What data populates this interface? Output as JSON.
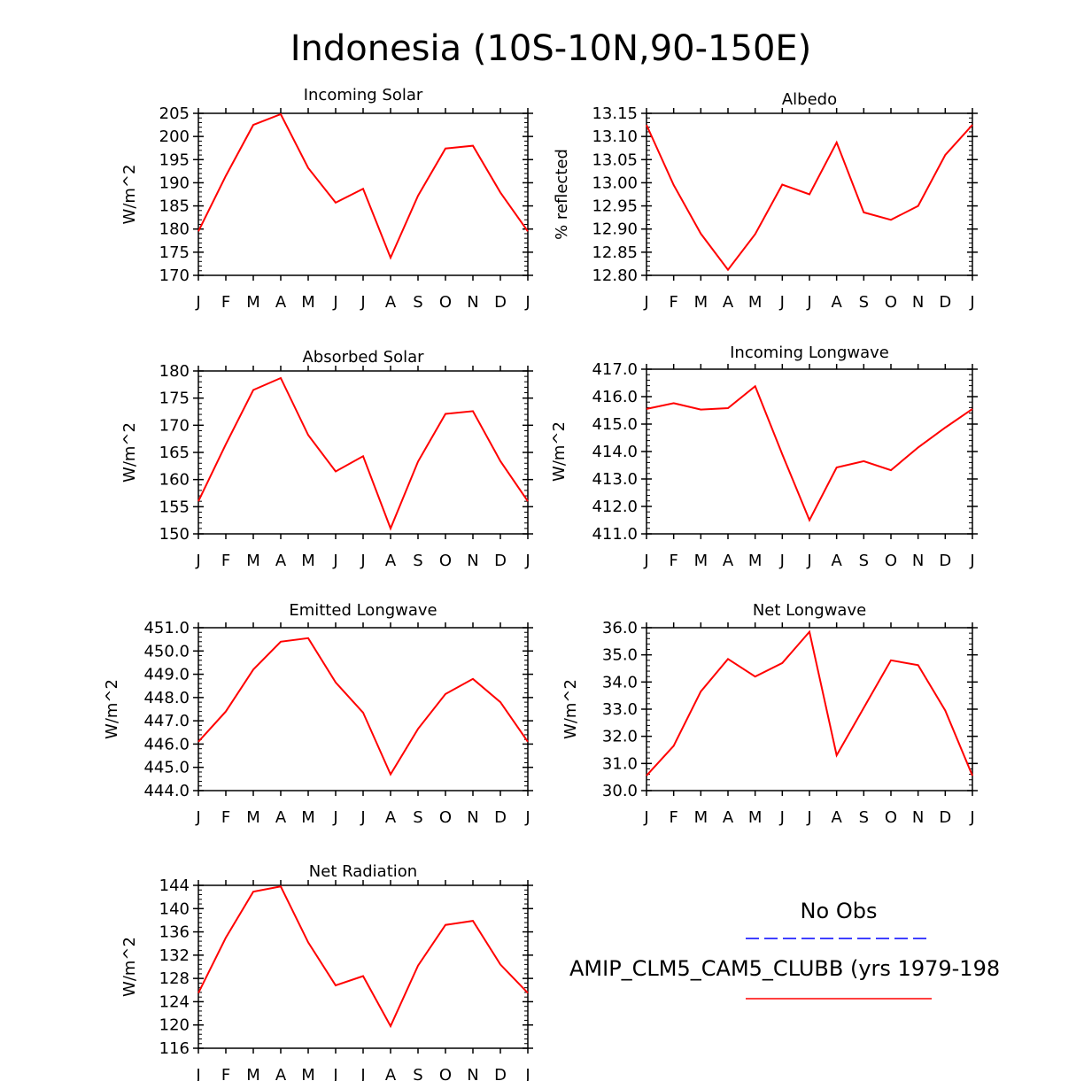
{
  "figure_title": "Indonesia (10S-10N,90-150E)",
  "colors": {
    "model": "#ff0000",
    "obs": "#0000ff",
    "axes": "#000000"
  },
  "legend": {
    "obs_label": "No Obs",
    "model_label": "AMIP_CLM5_CAM5_CLUBB (yrs 1979-198"
  },
  "chart_data": [
    {
      "type": "line",
      "title": "Incoming Solar",
      "ylabel": "W/m^2",
      "categories": [
        "J",
        "F",
        "M",
        "A",
        "M",
        "J",
        "J",
        "A",
        "S",
        "O",
        "N",
        "D",
        "J"
      ],
      "ylim": [
        170,
        205
      ],
      "yticks": [
        "170",
        "175",
        "180",
        "185",
        "190",
        "195",
        "200",
        "205"
      ],
      "series": [
        {
          "values": [
            179.5,
            191.5,
            202.5,
            204.8,
            193.2,
            185.7,
            188.7,
            173.8,
            187.2,
            197.4,
            198.0,
            187.9,
            179.5
          ]
        }
      ]
    },
    {
      "type": "line",
      "title": "Albedo",
      "ylabel": "% reflected",
      "categories": [
        "J",
        "F",
        "M",
        "A",
        "M",
        "J",
        "J",
        "A",
        "S",
        "O",
        "N",
        "D",
        "J"
      ],
      "ylim": [
        12.8,
        13.15
      ],
      "yticks": [
        "12.80",
        "12.85",
        "12.90",
        "12.95",
        "13.00",
        "13.05",
        "13.10",
        "13.15"
      ],
      "series": [
        {
          "values": [
            13.125,
            12.995,
            12.89,
            12.812,
            12.889,
            12.996,
            12.975,
            13.087,
            12.936,
            12.92,
            12.95,
            13.06,
            13.125
          ]
        }
      ]
    },
    {
      "type": "line",
      "title": "Absorbed Solar",
      "ylabel": "W/m^2",
      "categories": [
        "J",
        "F",
        "M",
        "A",
        "M",
        "J",
        "J",
        "A",
        "S",
        "O",
        "N",
        "D",
        "J"
      ],
      "ylim": [
        150,
        180
      ],
      "yticks": [
        "150",
        "155",
        "160",
        "165",
        "170",
        "175",
        "180"
      ],
      "series": [
        {
          "values": [
            156.0,
            166.5,
            176.5,
            178.7,
            168.2,
            161.5,
            164.3,
            151.0,
            163.3,
            172.1,
            172.6,
            163.4,
            156.0
          ]
        }
      ]
    },
    {
      "type": "line",
      "title": "Incoming Longwave",
      "ylabel": "W/m^2",
      "categories": [
        "J",
        "F",
        "M",
        "A",
        "M",
        "J",
        "J",
        "A",
        "S",
        "O",
        "N",
        "D",
        "J"
      ],
      "ylim": [
        411.0,
        417.0
      ],
      "yticks": [
        "411.0",
        "412.0",
        "413.0",
        "414.0",
        "415.0",
        "416.0",
        "417.0"
      ],
      "series": [
        {
          "values": [
            415.55,
            415.76,
            415.53,
            415.58,
            416.38,
            413.9,
            411.5,
            413.42,
            413.65,
            413.32,
            414.15,
            414.87,
            415.55
          ]
        }
      ]
    },
    {
      "type": "line",
      "title": "Emitted Longwave",
      "ylabel": "W/m^2",
      "categories": [
        "J",
        "F",
        "M",
        "A",
        "M",
        "J",
        "J",
        "A",
        "S",
        "O",
        "N",
        "D",
        "J"
      ],
      "ylim": [
        444.0,
        451.0
      ],
      "yticks": [
        "444.0",
        "445.0",
        "446.0",
        "447.0",
        "448.0",
        "449.0",
        "450.0",
        "451.0"
      ],
      "series": [
        {
          "values": [
            446.1,
            447.4,
            449.2,
            450.4,
            450.55,
            448.65,
            447.35,
            444.7,
            446.65,
            448.15,
            448.8,
            447.8,
            446.1
          ]
        }
      ]
    },
    {
      "type": "line",
      "title": "Net Longwave",
      "ylabel": "W/m^2",
      "categories": [
        "J",
        "F",
        "M",
        "A",
        "M",
        "J",
        "J",
        "A",
        "S",
        "O",
        "N",
        "D",
        "J"
      ],
      "ylim": [
        30.0,
        36.0
      ],
      "yticks": [
        "30.0",
        "31.0",
        "32.0",
        "33.0",
        "34.0",
        "35.0",
        "36.0"
      ],
      "series": [
        {
          "values": [
            30.55,
            31.65,
            33.65,
            34.85,
            34.2,
            34.7,
            35.85,
            31.3,
            33.05,
            34.8,
            34.62,
            32.95,
            30.55
          ]
        }
      ]
    },
    {
      "type": "line",
      "title": "Net Radiation",
      "ylabel": "W/m^2",
      "categories": [
        "J",
        "F",
        "M",
        "A",
        "M",
        "J",
        "J",
        "A",
        "S",
        "O",
        "N",
        "D",
        "J"
      ],
      "ylim": [
        116,
        144
      ],
      "yticks": [
        "116",
        "120",
        "124",
        "128",
        "132",
        "136",
        "140",
        "144"
      ],
      "series": [
        {
          "values": [
            125.5,
            135.0,
            142.9,
            143.8,
            134.2,
            126.8,
            128.4,
            119.8,
            130.2,
            137.2,
            137.9,
            130.4,
            125.5
          ]
        }
      ]
    }
  ]
}
